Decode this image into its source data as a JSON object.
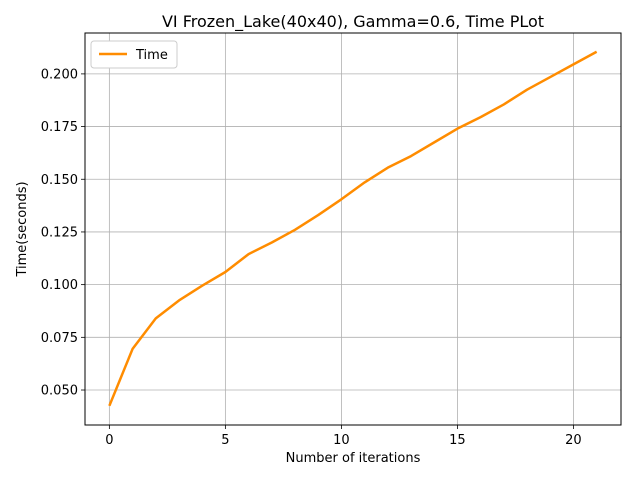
{
  "chart_data": {
    "type": "line",
    "title": "VI Frozen_Lake(40x40), Gamma=0.6, Time PLot",
    "xlabel": "Number of iterations",
    "ylabel": "Time(seconds)",
    "xlim": [
      -1.05,
      22.05
    ],
    "ylim": [
      0.0334,
      0.2194
    ],
    "xticks": [
      0,
      5,
      10,
      15,
      20
    ],
    "xtick_labels": [
      "0",
      "5",
      "10",
      "15",
      "20"
    ],
    "yticks": [
      0.05,
      0.075,
      0.1,
      0.125,
      0.15,
      0.175,
      0.2
    ],
    "ytick_labels": [
      "0.050",
      "0.075",
      "0.100",
      "0.125",
      "0.150",
      "0.175",
      "0.200"
    ],
    "grid": true,
    "legend_position": "upper-left",
    "series": [
      {
        "name": "Time",
        "color": "#ff8c00",
        "x": [
          0,
          1,
          2,
          3,
          4,
          5,
          6,
          7,
          8,
          9,
          10,
          11,
          12,
          13,
          14,
          15,
          16,
          17,
          18,
          19,
          20,
          21
        ],
        "y": [
          0.0425,
          0.0695,
          0.084,
          0.0925,
          0.0995,
          0.106,
          0.1145,
          0.12,
          0.126,
          0.133,
          0.1405,
          0.1485,
          0.1555,
          0.161,
          0.1675,
          0.174,
          0.1795,
          0.1855,
          0.1925,
          0.1985,
          0.2045,
          0.2105
        ]
      }
    ]
  }
}
